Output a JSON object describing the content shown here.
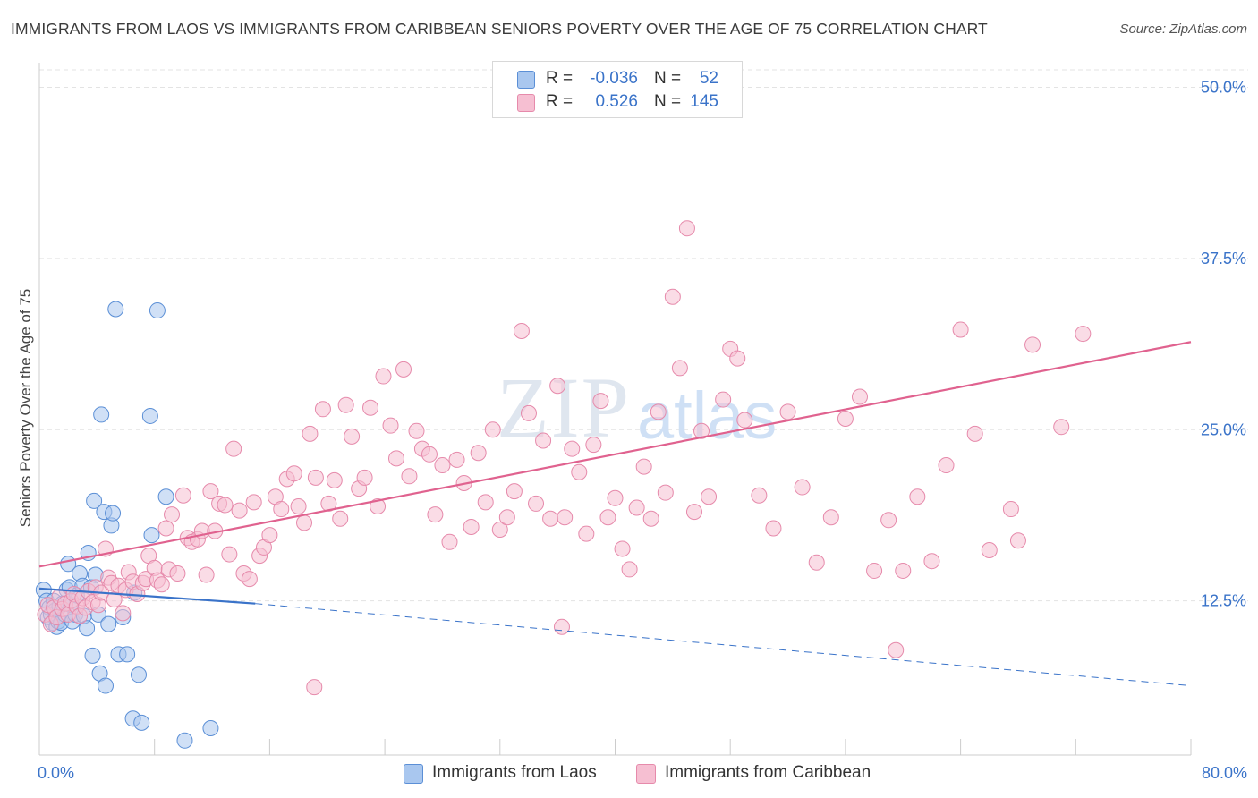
{
  "header": {
    "title": "IMMIGRANTS FROM LAOS VS IMMIGRANTS FROM CARIBBEAN SENIORS POVERTY OVER THE AGE OF 75 CORRELATION CHART",
    "source": "Source: ZipAtlas.com"
  },
  "legend": {
    "row1": {
      "r_label": "R =",
      "r_value": "-0.036",
      "n_label": "N =",
      "n_value": "52"
    },
    "row2": {
      "r_label": "R =",
      "r_value": "0.526",
      "n_label": "N =",
      "n_value": "145"
    }
  },
  "watermark": {
    "zip": "ZIP",
    "atlas": "atlas"
  },
  "colors": {
    "laos_fill": "#a9c7ef",
    "laos_stroke": "#5b8fd6",
    "laos_line": "#3a73c9",
    "carib_fill": "#f6bfd2",
    "carib_stroke": "#e68aab",
    "carib_line": "#e0628f",
    "tick_text": "#3a73c9",
    "grid": "#e3e3e3"
  },
  "chart_data": {
    "type": "scatter",
    "title": "IMMIGRANTS FROM LAOS VS IMMIGRANTS FROM CARIBBEAN SENIORS POVERTY OVER THE AGE OF 75 CORRELATION CHART",
    "xlabel": "",
    "ylabel": "Seniors Poverty Over the Age of 75",
    "xlim": [
      0,
      80
    ],
    "ylim": [
      0,
      51
    ],
    "x_tick_labels": [
      {
        "value": 0,
        "label": "0.0%"
      },
      {
        "value": 80,
        "label": "80.0%"
      }
    ],
    "y_tick_labels": [
      {
        "value": 12.5,
        "label": "12.5%"
      },
      {
        "value": 25.0,
        "label": "25.0%"
      },
      {
        "value": 37.5,
        "label": "37.5%"
      },
      {
        "value": 50.0,
        "label": "50.0%"
      }
    ],
    "series": [
      {
        "name": "Immigrants from Laos",
        "r": -0.036,
        "n": 52,
        "trend": {
          "solid": [
            [
              0,
              13.4
            ],
            [
              15,
              12.3
            ]
          ],
          "dashed": [
            [
              15,
              12.3
            ],
            [
              80,
              6.3
            ]
          ]
        },
        "points": [
          [
            0.3,
            13.3
          ],
          [
            0.5,
            12.5
          ],
          [
            0.6,
            11.3
          ],
          [
            0.7,
            12.0
          ],
          [
            0.8,
            11.5
          ],
          [
            0.9,
            10.9
          ],
          [
            1.0,
            12.5
          ],
          [
            1.1,
            11.8
          ],
          [
            1.2,
            10.6
          ],
          [
            1.3,
            11.0
          ],
          [
            1.4,
            12.1
          ],
          [
            1.5,
            10.9
          ],
          [
            1.6,
            12.3
          ],
          [
            1.8,
            11.5
          ],
          [
            1.9,
            13.3
          ],
          [
            2.0,
            15.2
          ],
          [
            2.1,
            13.5
          ],
          [
            2.2,
            12.2
          ],
          [
            2.3,
            11.0
          ],
          [
            2.5,
            11.5
          ],
          [
            2.6,
            12.9
          ],
          [
            2.8,
            14.5
          ],
          [
            3.0,
            13.6
          ],
          [
            3.1,
            11.4
          ],
          [
            3.3,
            10.5
          ],
          [
            3.4,
            16.0
          ],
          [
            3.6,
            13.5
          ],
          [
            3.7,
            8.5
          ],
          [
            3.8,
            19.8
          ],
          [
            3.9,
            14.4
          ],
          [
            4.1,
            11.5
          ],
          [
            4.2,
            7.2
          ],
          [
            4.3,
            26.1
          ],
          [
            4.5,
            19.0
          ],
          [
            4.6,
            6.3
          ],
          [
            4.8,
            10.8
          ],
          [
            5.0,
            18.0
          ],
          [
            5.1,
            18.9
          ],
          [
            5.3,
            33.8
          ],
          [
            5.5,
            8.6
          ],
          [
            5.8,
            11.3
          ],
          [
            6.1,
            8.6
          ],
          [
            6.5,
            3.9
          ],
          [
            6.6,
            13.1
          ],
          [
            6.9,
            7.1
          ],
          [
            7.1,
            3.6
          ],
          [
            7.7,
            26.0
          ],
          [
            7.8,
            17.3
          ],
          [
            8.2,
            33.7
          ],
          [
            8.8,
            20.1
          ],
          [
            10.1,
            2.3
          ],
          [
            11.9,
            3.2
          ]
        ]
      },
      {
        "name": "Immigrants from Caribbean",
        "r": 0.526,
        "n": 145,
        "trend": {
          "solid": [
            [
              0,
              15.0
            ],
            [
              80,
              31.4
            ]
          ]
        },
        "points": [
          [
            0.4,
            11.5
          ],
          [
            0.6,
            12.2
          ],
          [
            0.8,
            10.8
          ],
          [
            1.0,
            12.0
          ],
          [
            1.2,
            11.3
          ],
          [
            1.4,
            12.8
          ],
          [
            1.6,
            11.9
          ],
          [
            1.8,
            12.3
          ],
          [
            2.0,
            11.5
          ],
          [
            2.2,
            12.5
          ],
          [
            2.4,
            13.0
          ],
          [
            2.6,
            12.1
          ],
          [
            2.8,
            11.4
          ],
          [
            3.0,
            12.7
          ],
          [
            3.2,
            12.0
          ],
          [
            3.4,
            13.2
          ],
          [
            3.7,
            12.4
          ],
          [
            3.9,
            13.5
          ],
          [
            4.1,
            12.2
          ],
          [
            4.3,
            13.1
          ],
          [
            4.6,
            16.3
          ],
          [
            4.8,
            14.2
          ],
          [
            5.0,
            13.8
          ],
          [
            5.2,
            12.6
          ],
          [
            5.5,
            13.6
          ],
          [
            5.8,
            11.6
          ],
          [
            6.0,
            13.3
          ],
          [
            6.2,
            14.6
          ],
          [
            6.5,
            13.9
          ],
          [
            6.8,
            13.0
          ],
          [
            7.2,
            13.8
          ],
          [
            7.4,
            14.1
          ],
          [
            7.6,
            15.8
          ],
          [
            8.0,
            14.9
          ],
          [
            8.2,
            14.0
          ],
          [
            8.5,
            13.7
          ],
          [
            8.8,
            17.8
          ],
          [
            9.0,
            14.8
          ],
          [
            9.2,
            18.8
          ],
          [
            9.6,
            14.5
          ],
          [
            10.0,
            20.2
          ],
          [
            10.3,
            17.1
          ],
          [
            10.6,
            16.8
          ],
          [
            11.0,
            17.0
          ],
          [
            11.3,
            17.6
          ],
          [
            11.6,
            14.4
          ],
          [
            11.9,
            20.5
          ],
          [
            12.2,
            17.6
          ],
          [
            12.5,
            19.6
          ],
          [
            12.9,
            19.5
          ],
          [
            13.2,
            15.9
          ],
          [
            13.5,
            23.6
          ],
          [
            13.9,
            19.1
          ],
          [
            14.2,
            14.5
          ],
          [
            14.6,
            14.1
          ],
          [
            14.9,
            19.7
          ],
          [
            15.3,
            15.8
          ],
          [
            15.6,
            16.4
          ],
          [
            16.0,
            17.3
          ],
          [
            16.4,
            20.1
          ],
          [
            16.8,
            19.2
          ],
          [
            17.2,
            21.4
          ],
          [
            17.7,
            21.8
          ],
          [
            18.0,
            19.4
          ],
          [
            18.4,
            18.2
          ],
          [
            18.8,
            24.7
          ],
          [
            19.2,
            21.5
          ],
          [
            19.7,
            26.5
          ],
          [
            20.1,
            19.6
          ],
          [
            20.5,
            21.3
          ],
          [
            20.9,
            18.5
          ],
          [
            21.3,
            26.8
          ],
          [
            21.7,
            24.5
          ],
          [
            22.2,
            20.7
          ],
          [
            22.6,
            21.5
          ],
          [
            23.0,
            26.6
          ],
          [
            23.5,
            19.4
          ],
          [
            23.9,
            28.9
          ],
          [
            24.4,
            25.3
          ],
          [
            24.8,
            22.9
          ],
          [
            25.3,
            29.4
          ],
          [
            25.7,
            21.6
          ],
          [
            26.2,
            24.9
          ],
          [
            26.6,
            23.6
          ],
          [
            27.1,
            23.2
          ],
          [
            27.5,
            18.8
          ],
          [
            28.0,
            22.4
          ],
          [
            28.5,
            16.8
          ],
          [
            29.0,
            22.8
          ],
          [
            29.5,
            21.1
          ],
          [
            30.0,
            17.9
          ],
          [
            30.5,
            23.3
          ],
          [
            31.0,
            19.7
          ],
          [
            31.5,
            25.0
          ],
          [
            32.0,
            17.7
          ],
          [
            32.5,
            18.6
          ],
          [
            33.0,
            20.5
          ],
          [
            33.5,
            32.2
          ],
          [
            34.0,
            26.2
          ],
          [
            34.5,
            19.6
          ],
          [
            35.0,
            24.2
          ],
          [
            35.5,
            18.5
          ],
          [
            36.0,
            28.2
          ],
          [
            36.5,
            18.6
          ],
          [
            37.0,
            23.6
          ],
          [
            37.5,
            21.9
          ],
          [
            38.0,
            17.4
          ],
          [
            38.5,
            23.9
          ],
          [
            39.0,
            27.1
          ],
          [
            39.5,
            18.6
          ],
          [
            40.0,
            20.0
          ],
          [
            40.5,
            16.3
          ],
          [
            41.0,
            14.8
          ],
          [
            41.5,
            19.3
          ],
          [
            42.0,
            22.3
          ],
          [
            42.5,
            18.5
          ],
          [
            43.0,
            26.3
          ],
          [
            43.5,
            20.4
          ],
          [
            44.0,
            34.7
          ],
          [
            44.5,
            29.5
          ],
          [
            45.0,
            39.7
          ],
          [
            45.5,
            19.0
          ],
          [
            46.0,
            24.9
          ],
          [
            46.5,
            20.1
          ],
          [
            47.5,
            27.2
          ],
          [
            48.0,
            30.9
          ],
          [
            48.5,
            30.2
          ],
          [
            49.0,
            25.7
          ],
          [
            50.0,
            20.2
          ],
          [
            51.0,
            17.8
          ],
          [
            52.0,
            26.3
          ],
          [
            53.0,
            20.8
          ],
          [
            54.0,
            15.3
          ],
          [
            55.0,
            18.6
          ],
          [
            56.0,
            25.8
          ],
          [
            57.0,
            27.4
          ],
          [
            58.0,
            14.7
          ],
          [
            59.0,
            18.4
          ],
          [
            60.0,
            14.7
          ],
          [
            61.0,
            20.1
          ],
          [
            62.0,
            15.4
          ],
          [
            63.0,
            22.4
          ],
          [
            64.0,
            32.3
          ],
          [
            65.0,
            24.7
          ],
          [
            66.0,
            16.2
          ],
          [
            67.5,
            19.2
          ],
          [
            69.0,
            31.2
          ],
          [
            71.0,
            25.2
          ],
          [
            72.5,
            32.0
          ],
          [
            68.0,
            16.9
          ],
          [
            59.5,
            8.9
          ],
          [
            36.3,
            10.6
          ],
          [
            19.1,
            6.2
          ]
        ]
      }
    ]
  },
  "bottom_legend": {
    "laos": "Immigrants from Laos",
    "carib": "Immigrants from Caribbean"
  }
}
